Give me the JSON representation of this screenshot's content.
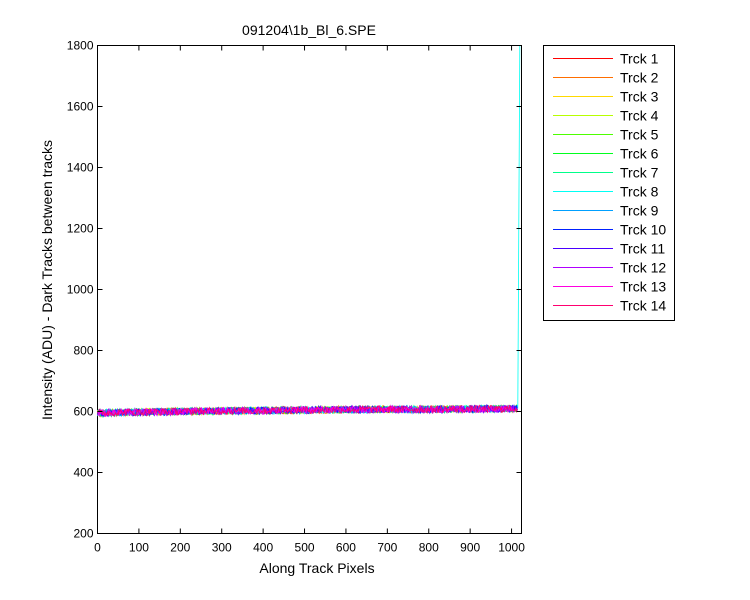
{
  "chart_data": {
    "type": "line",
    "title": "091204\\1b_Bl_6.SPE",
    "xlabel": "Along Track Pixels",
    "ylabel": "Intensity (ADU) - Dark Tracks between tracks",
    "xlim": [
      0,
      1024
    ],
    "ylim": [
      200,
      1800
    ],
    "xticks": [
      0,
      100,
      200,
      300,
      400,
      500,
      600,
      700,
      800,
      900,
      1000
    ],
    "yticks": [
      200,
      400,
      600,
      800,
      1000,
      1200,
      1400,
      1600,
      1800
    ],
    "grid": false,
    "legend_position": "outside-right",
    "baseline_profile": {
      "x": [
        0,
        100,
        200,
        300,
        400,
        500,
        600,
        700,
        800,
        900,
        1000,
        1015
      ],
      "y": [
        595,
        598,
        600,
        602,
        603,
        605,
        606,
        607,
        607,
        608,
        610,
        610
      ],
      "noise_amplitude": 12
    },
    "end_spike": {
      "x": [
        1015,
        1018,
        1020,
        1021
      ],
      "y": [
        610,
        1330,
        1800,
        1800
      ],
      "series": "Trck 8"
    },
    "series": [
      {
        "name": "Trck 1",
        "color": "#ff0000"
      },
      {
        "name": "Trck 2",
        "color": "#ff6e00"
      },
      {
        "name": "Trck 3",
        "color": "#ffd900"
      },
      {
        "name": "Trck 4",
        "color": "#b8ff00"
      },
      {
        "name": "Trck 5",
        "color": "#4dff00"
      },
      {
        "name": "Trck 6",
        "color": "#00ff1e"
      },
      {
        "name": "Trck 7",
        "color": "#00ff8a"
      },
      {
        "name": "Trck 8",
        "color": "#00fff4"
      },
      {
        "name": "Trck 9",
        "color": "#00a0ff"
      },
      {
        "name": "Trck 10",
        "color": "#0020ff"
      },
      {
        "name": "Trck 11",
        "color": "#4a00ff"
      },
      {
        "name": "Trck 12",
        "color": "#b000ff"
      },
      {
        "name": "Trck 13",
        "color": "#ff00e0"
      },
      {
        "name": "Trck 14",
        "color": "#ff0070"
      }
    ]
  }
}
